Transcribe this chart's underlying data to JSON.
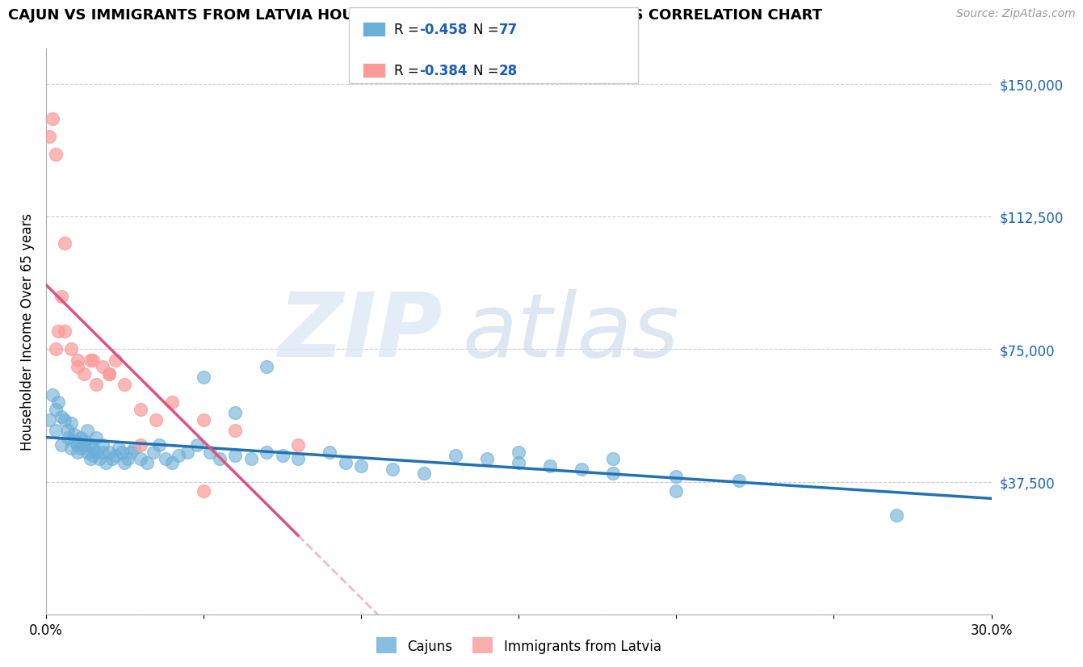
{
  "title": "CAJUN VS IMMIGRANTS FROM LATVIA HOUSEHOLDER INCOME OVER 65 YEARS CORRELATION CHART",
  "source": "Source: ZipAtlas.com",
  "ylabel": "Householder Income Over 65 years",
  "cajun_R": "-0.458",
  "cajun_N": "77",
  "latvia_R": "-0.384",
  "latvia_N": "28",
  "xlim": [
    0.0,
    0.3
  ],
  "ylim": [
    0,
    160000
  ],
  "yticks": [
    0,
    37500,
    75000,
    112500,
    150000
  ],
  "ytick_labels": [
    "",
    "$37,500",
    "$75,000",
    "$112,500",
    "$150,000"
  ],
  "cajun_color": "#6baed6",
  "latvia_color": "#fb9a99",
  "cajun_line_color": "#2171b5",
  "latvia_line_color": "#e05080",
  "background_color": "#ffffff",
  "cajun_x": [
    0.001,
    0.002,
    0.003,
    0.003,
    0.004,
    0.005,
    0.005,
    0.006,
    0.007,
    0.007,
    0.008,
    0.008,
    0.009,
    0.009,
    0.01,
    0.01,
    0.011,
    0.011,
    0.012,
    0.012,
    0.013,
    0.013,
    0.014,
    0.014,
    0.015,
    0.015,
    0.016,
    0.016,
    0.017,
    0.018,
    0.018,
    0.019,
    0.02,
    0.021,
    0.022,
    0.023,
    0.024,
    0.025,
    0.026,
    0.027,
    0.028,
    0.03,
    0.032,
    0.034,
    0.036,
    0.038,
    0.04,
    0.042,
    0.045,
    0.048,
    0.052,
    0.055,
    0.06,
    0.065,
    0.07,
    0.075,
    0.08,
    0.09,
    0.095,
    0.1,
    0.11,
    0.12,
    0.13,
    0.14,
    0.15,
    0.16,
    0.17,
    0.18,
    0.2,
    0.22,
    0.05,
    0.06,
    0.07,
    0.15,
    0.18,
    0.2,
    0.27
  ],
  "cajun_y": [
    55000,
    62000,
    58000,
    52000,
    60000,
    56000,
    48000,
    55000,
    50000,
    52000,
    47000,
    54000,
    49000,
    51000,
    48000,
    46000,
    50000,
    47000,
    49000,
    48000,
    52000,
    46000,
    44000,
    48000,
    45000,
    47000,
    46000,
    50000,
    44000,
    46000,
    48000,
    43000,
    46000,
    44000,
    45000,
    47000,
    46000,
    43000,
    44000,
    46000,
    47000,
    44000,
    43000,
    46000,
    48000,
    44000,
    43000,
    45000,
    46000,
    48000,
    46000,
    44000,
    45000,
    44000,
    46000,
    45000,
    44000,
    46000,
    43000,
    42000,
    41000,
    40000,
    45000,
    44000,
    43000,
    42000,
    41000,
    40000,
    39000,
    38000,
    67000,
    57000,
    70000,
    46000,
    44000,
    35000,
    28000
  ],
  "latvia_x": [
    0.002,
    0.003,
    0.004,
    0.005,
    0.006,
    0.008,
    0.01,
    0.012,
    0.014,
    0.016,
    0.018,
    0.02,
    0.022,
    0.025,
    0.03,
    0.035,
    0.04,
    0.05,
    0.06,
    0.08,
    0.001,
    0.003,
    0.006,
    0.01,
    0.015,
    0.02,
    0.03,
    0.05
  ],
  "latvia_y": [
    140000,
    130000,
    80000,
    90000,
    105000,
    75000,
    72000,
    68000,
    72000,
    65000,
    70000,
    68000,
    72000,
    65000,
    58000,
    55000,
    60000,
    55000,
    52000,
    48000,
    135000,
    75000,
    80000,
    70000,
    72000,
    68000,
    48000,
    35000
  ]
}
